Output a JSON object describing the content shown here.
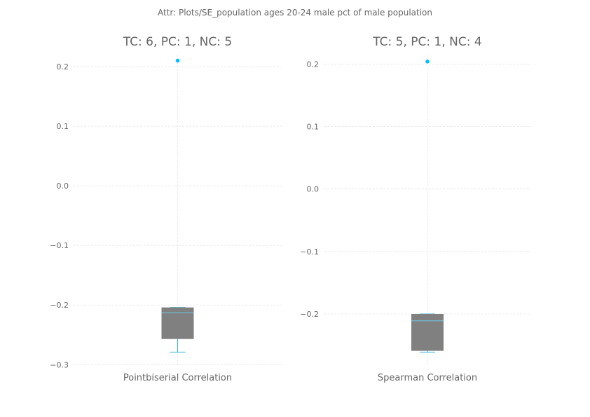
{
  "suptitle": "Attr: Plots/SE_population ages 20-24 male pct of male population",
  "colors": {
    "box_fill": "#808080",
    "whisker": "#35b3d6",
    "median": "#6fc9e6",
    "flier": "#00bfff",
    "grid": "#e6e6e6",
    "text": "#666666"
  },
  "chart_data": [
    {
      "type": "box",
      "title": "TC: 6, PC: 1, NC: 5",
      "xlabel": "Pointbiserial Correlation",
      "ylabel": "",
      "ylim": [
        -0.302,
        0.22
      ],
      "yticks": [
        -0.3,
        -0.2,
        -0.1,
        0.0,
        0.1,
        0.2
      ],
      "ytick_labels": [
        "−0.3",
        "−0.2",
        "−0.1",
        "0.0",
        "0.1",
        "0.2"
      ],
      "grid": true,
      "box": {
        "whislo": -0.279,
        "q1": -0.257,
        "med": -0.213,
        "q3": -0.204,
        "whishi": -0.204
      },
      "fliers": [
        0.21
      ]
    },
    {
      "type": "box",
      "title": "TC: 5, PC: 1, NC: 4",
      "xlabel": "Spearman Correlation",
      "ylabel": "",
      "ylim": [
        -0.283,
        0.215
      ],
      "yticks": [
        -0.2,
        -0.1,
        0.0,
        0.1,
        0.2
      ],
      "ytick_labels": [
        "−0.2",
        "−0.1",
        "0.0",
        "0.1",
        "0.2"
      ],
      "grid": true,
      "box": {
        "whislo": -0.261,
        "q1": -0.259,
        "med": -0.211,
        "q3": -0.2,
        "whishi": -0.2
      },
      "fliers": [
        0.204
      ]
    }
  ]
}
